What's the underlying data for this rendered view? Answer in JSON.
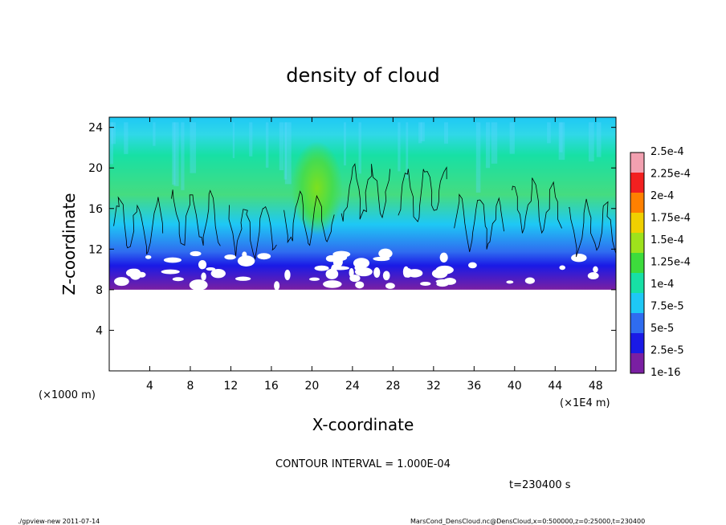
{
  "chart_data": {
    "type": "heatmap",
    "title": "density of cloud",
    "xlabel": "X-coordinate",
    "ylabel": "Z-coordinate",
    "x_unit": "(×1E4 m)",
    "y_unit": "(×1000 m)",
    "xlim": [
      0,
      50
    ],
    "ylim": [
      0,
      25
    ],
    "x_ticks": [
      4,
      8,
      12,
      16,
      20,
      24,
      28,
      32,
      36,
      40,
      44,
      48
    ],
    "y_ticks": [
      4,
      8,
      12,
      16,
      20,
      24
    ],
    "cloud_base_z": 8,
    "cloud_top_z": 25,
    "colorbar": {
      "labels": [
        "1e-16",
        "2.5e-5",
        "5e-5",
        "7.5e-5",
        "1e-4",
        "1.25e-4",
        "1.5e-4",
        "1.75e-4",
        "2e-4",
        "2.25e-4",
        "2.5e-4"
      ],
      "colors": [
        "#7a1fa2",
        "#1a1ae6",
        "#2f6cf0",
        "#1ec8f5",
        "#17e0a5",
        "#3ddc3c",
        "#9ee21c",
        "#f0d000",
        "#ff8000",
        "#f22020",
        "#f2a0b0"
      ]
    },
    "layers": [
      {
        "z_range": [
          8,
          12.5
        ],
        "value_range": [
          "1e-16",
          "2.5e-5"
        ],
        "color": "#7a1fa2"
      },
      {
        "z_range": [
          12.5,
          14
        ],
        "value_range": [
          "2.5e-5",
          "5e-5"
        ],
        "color": "#2f6cf0"
      },
      {
        "z_range": [
          14,
          17
        ],
        "value_range": [
          "7.5e-5",
          "1e-4"
        ],
        "color": "#1ec8f5"
      },
      {
        "z_range": [
          17,
          21
        ],
        "value_range": [
          "1e-4",
          "1.25e-4"
        ],
        "color": "#17e0a5"
      },
      {
        "z_range": [
          21,
          25
        ],
        "value_range": [
          "5e-5",
          "7.5e-5"
        ],
        "color": "#1ec8f5"
      }
    ],
    "contour_interval_text": "CONTOUR INTERVAL = 1.000E-04",
    "time_text": "t=230400 s"
  },
  "footer": {
    "left": "./gpview-new   2011-07-14",
    "right": "MarsCond_DensCloud.nc@DensCloud,x=0:500000,z=0:25000,t=230400"
  }
}
